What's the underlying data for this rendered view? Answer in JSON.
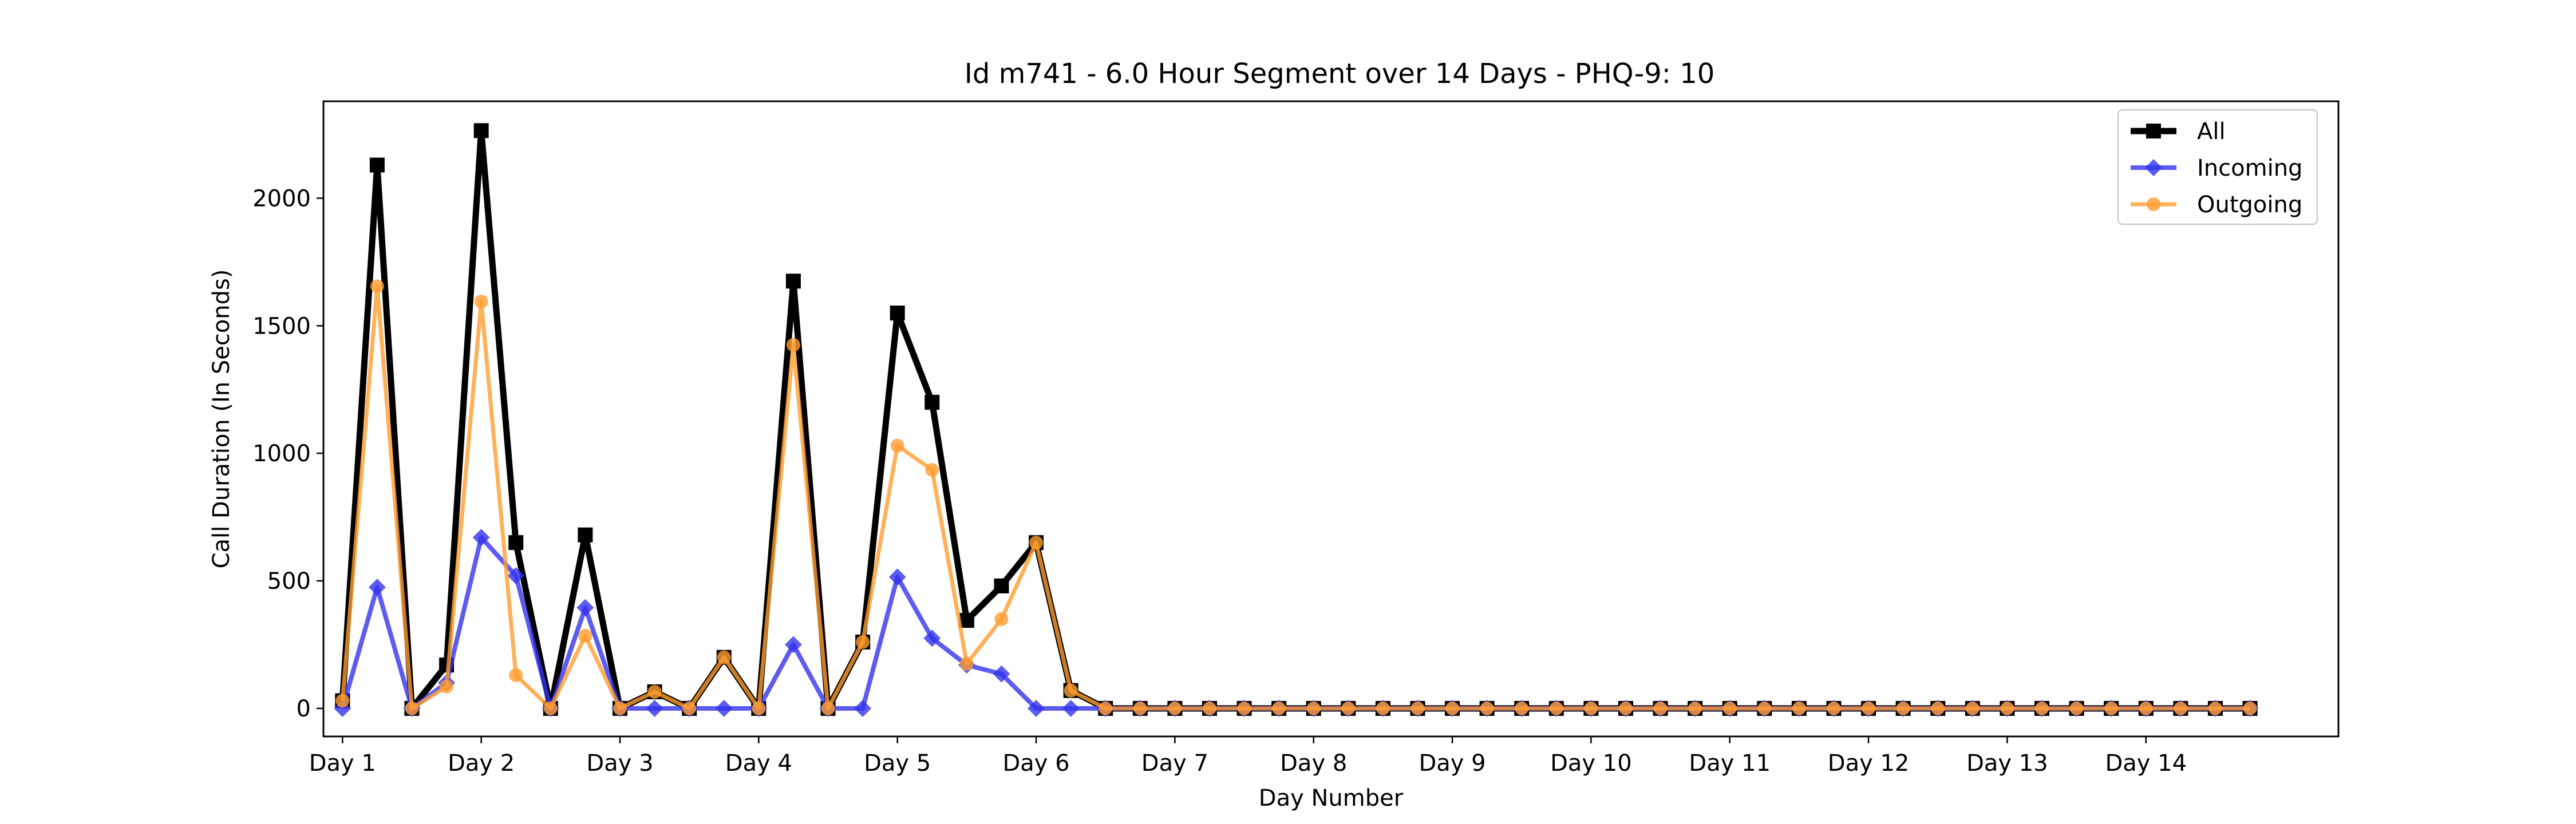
{
  "chart_data": {
    "type": "line",
    "title": "Id m741 - 6.0 Hour Segment over 14 Days - PHQ-9: 10",
    "xlabel": "Day Number",
    "ylabel": "Call Duration (In Seconds)",
    "xlim": [
      -0.55,
      57.55
    ],
    "ylim": [
      -110,
      2380
    ],
    "xticks": [
      0,
      4,
      8,
      12,
      16,
      20,
      24,
      28,
      32,
      36,
      40,
      44,
      48,
      52
    ],
    "xtick_labels": [
      "Day 1",
      "Day 2",
      "Day 3",
      "Day 4",
      "Day 5",
      "Day 6",
      "Day 7",
      "Day 8",
      "Day 9",
      "Day 10",
      "Day 11",
      "Day 12",
      "Day 13",
      "Day 14"
    ],
    "yticks": [
      0,
      500,
      1000,
      1500,
      2000
    ],
    "ytick_labels": [
      "0",
      "500",
      "1000",
      "1500",
      "2000"
    ],
    "grid": false,
    "legend_position": "top-right",
    "x": [
      0,
      1,
      2,
      3,
      4,
      5,
      6,
      7,
      8,
      9,
      10,
      11,
      12,
      13,
      14,
      15,
      16,
      17,
      18,
      19,
      20,
      21,
      22,
      23,
      24,
      25,
      26,
      27,
      28,
      29,
      30,
      31,
      32,
      33,
      34,
      35,
      36,
      37,
      38,
      39,
      40,
      41,
      42,
      43,
      44,
      45,
      46,
      47,
      48,
      49,
      50,
      51,
      52,
      53,
      54,
      55
    ],
    "series": [
      {
        "name": "All",
        "color": "#000000",
        "marker": "square",
        "values": [
          30,
          2130,
          0,
          170,
          2265,
          650,
          0,
          680,
          0,
          65,
          0,
          200,
          0,
          1675,
          0,
          260,
          1550,
          1200,
          345,
          480,
          650,
          70,
          0,
          0,
          0,
          0,
          0,
          0,
          0,
          0,
          0,
          0,
          0,
          0,
          0,
          0,
          0,
          0,
          0,
          0,
          0,
          0,
          0,
          0,
          0,
          0,
          0,
          0,
          0,
          0,
          0,
          0,
          0,
          0,
          0,
          0
        ]
      },
      {
        "name": "Incoming",
        "color": "#3333ee",
        "marker": "diamond",
        "values": [
          0,
          475,
          0,
          100,
          670,
          520,
          0,
          395,
          0,
          0,
          0,
          0,
          0,
          250,
          0,
          0,
          515,
          275,
          170,
          135,
          0,
          0,
          0,
          0,
          0,
          0,
          0,
          0,
          0,
          0,
          0,
          0,
          0,
          0,
          0,
          0,
          0,
          0,
          0,
          0,
          0,
          0,
          0,
          0,
          0,
          0,
          0,
          0,
          0,
          0,
          0,
          0,
          0,
          0,
          0,
          0
        ]
      },
      {
        "name": "Outgoing",
        "color": "#ff9e30",
        "marker": "circle",
        "values": [
          30,
          1655,
          0,
          85,
          1595,
          130,
          0,
          285,
          0,
          65,
          0,
          200,
          0,
          1425,
          0,
          260,
          1030,
          935,
          175,
          350,
          650,
          70,
          0,
          0,
          0,
          0,
          0,
          0,
          0,
          0,
          0,
          0,
          0,
          0,
          0,
          0,
          0,
          0,
          0,
          0,
          0,
          0,
          0,
          0,
          0,
          0,
          0,
          0,
          0,
          0,
          0,
          0,
          0,
          0,
          0,
          0
        ]
      }
    ]
  }
}
